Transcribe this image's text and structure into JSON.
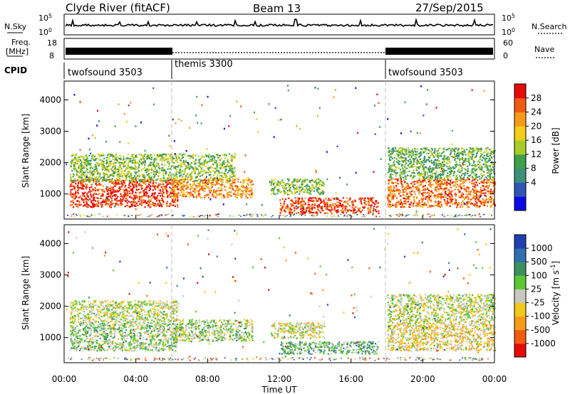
{
  "header": {
    "station": "Clyde River (fitACF)",
    "beam": "Beam 13",
    "date": "27/Sep/2015"
  },
  "strips": {
    "nsky": {
      "label": "N.Sky",
      "ticks_left": [
        "10^5",
        "10^0"
      ],
      "right_label": "N.Search",
      "ticks_right": [
        "10^5",
        "10^0"
      ]
    },
    "freq": {
      "label_line1": "Freq.",
      "label_line2": "[MHz]",
      "ticks_left": [
        "18",
        "8"
      ],
      "right_label": "Nave",
      "ticks_right": [
        "60",
        "0"
      ]
    },
    "cpid": {
      "label": "CPID",
      "segments": [
        {
          "name": "twofsound 3503",
          "start_h": 0,
          "end_h": 6
        },
        {
          "name": "themis 3300",
          "start_h": 6,
          "end_h": 18
        },
        {
          "name": "twofsound 3503",
          "start_h": 18,
          "end_h": 24
        }
      ]
    }
  },
  "colors": {
    "power_scale": [
      "#0a0ae6",
      "#2f55b5",
      "#3d8f7a",
      "#3fa04a",
      "#a8cc2a",
      "#f2ce1a",
      "#f79a1a",
      "#f25a12",
      "#e60a0a"
    ],
    "velocity_scale": [
      "#e60a0a",
      "#f25a12",
      "#f79a1a",
      "#f2c81a",
      "#c8c8c0",
      "#5ac832",
      "#3d8f60",
      "#2f6fb0",
      "#1f3fb0"
    ],
    "separator": "#bbbbbb"
  },
  "power_colorbar": {
    "ticks": [
      "28",
      "24",
      "20",
      "16",
      "12",
      "8",
      "4"
    ],
    "label": "Power [dB]"
  },
  "velocity_colorbar": {
    "ticks": [
      "1000",
      "500",
      "100",
      "25",
      "-25",
      "-100",
      "-500",
      "-1000"
    ],
    "label": "Velocity [m s^-1]"
  },
  "chart_data": [
    {
      "type": "heatmap",
      "title": "Power",
      "ylabel": "Slant Range [km]",
      "ylim": [
        200,
        4600
      ],
      "yticks": [
        "1000",
        "2000",
        "3000",
        "4000"
      ],
      "xlim": [
        0,
        24
      ],
      "colorbar_label": "Power [dB]",
      "colorbar_range": [
        0,
        30
      ],
      "bands": [
        {
          "t0": 0.3,
          "t1": 6.3,
          "r0": 600,
          "r1": 1500,
          "value": 27
        },
        {
          "t0": 0.3,
          "t1": 9.5,
          "r0": 1400,
          "r1": 2300,
          "value": 14
        },
        {
          "t0": 6.0,
          "t1": 10.5,
          "r0": 900,
          "r1": 1500,
          "value": 22
        },
        {
          "t0": 12.0,
          "t1": 17.5,
          "r0": 400,
          "r1": 900,
          "value": 26
        },
        {
          "t0": 11.5,
          "t1": 14.5,
          "r0": 1000,
          "r1": 1500,
          "value": 14
        },
        {
          "t0": 18.0,
          "t1": 24.0,
          "r0": 600,
          "r1": 1500,
          "value": 24
        },
        {
          "t0": 18.0,
          "t1": 24.0,
          "r0": 1500,
          "r1": 2500,
          "value": 12
        }
      ]
    },
    {
      "type": "heatmap",
      "title": "Velocity",
      "xlabel": "Time UT",
      "ylabel": "Slant Range [km]",
      "ylim": [
        200,
        4600
      ],
      "yticks": [
        "1000",
        "2000",
        "3000",
        "4000"
      ],
      "xlim": [
        0,
        24
      ],
      "xticks": [
        "00:00",
        "04:00",
        "08:00",
        "12:00",
        "16:00",
        "20:00",
        "00:00"
      ],
      "colorbar_label": "Velocity [m s^-1]",
      "colorbar_range": [
        -1000,
        1000
      ],
      "bands": [
        {
          "t0": 0.3,
          "t1": 6.3,
          "r0": 600,
          "r1": 1500,
          "value": 150
        },
        {
          "t0": 0.3,
          "t1": 6.3,
          "r0": 1500,
          "r1": 2200,
          "value": 0
        },
        {
          "t0": 6.0,
          "t1": 10.5,
          "r0": 900,
          "r1": 1600,
          "value": 90
        },
        {
          "t0": 12.0,
          "t1": 17.5,
          "r0": 500,
          "r1": 900,
          "value": 300
        },
        {
          "t0": 11.5,
          "t1": 14.5,
          "r0": 1000,
          "r1": 1500,
          "value": -60
        },
        {
          "t0": 18.0,
          "t1": 24.0,
          "r0": 600,
          "r1": 1500,
          "value": -150
        },
        {
          "t0": 18.0,
          "t1": 24.0,
          "r0": 1500,
          "r1": 2400,
          "value": 0
        }
      ]
    }
  ]
}
